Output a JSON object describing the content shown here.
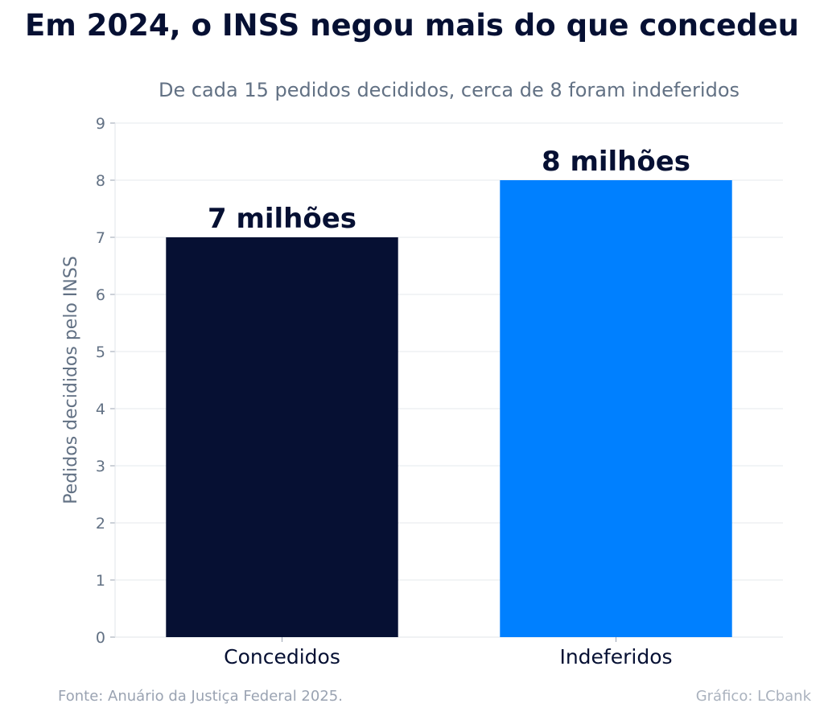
{
  "header": {
    "title": "Em 2024, o INSS negou mais do que concedeu",
    "subtitle": "De cada 15 pedidos decididos, cerca de 8 foram indeferidos"
  },
  "footer": {
    "source": "Fonte: Anuário da Justiça Federal 2025.",
    "credit": "Gráfico: LCbank"
  },
  "chart_data": {
    "type": "bar",
    "categories": [
      "Concedidos",
      "Indeferidos"
    ],
    "values": [
      7,
      8
    ],
    "data_labels": [
      "7 milhões",
      "8 milhões"
    ],
    "colors": [
      "#061033",
      "#0080ff"
    ],
    "xlabel": "",
    "ylabel": "Pedidos decididos pelo INSS",
    "ylim": [
      0,
      9
    ],
    "yticks": [
      0,
      1,
      2,
      3,
      4,
      5,
      6,
      7,
      8,
      9
    ],
    "grid": true
  }
}
